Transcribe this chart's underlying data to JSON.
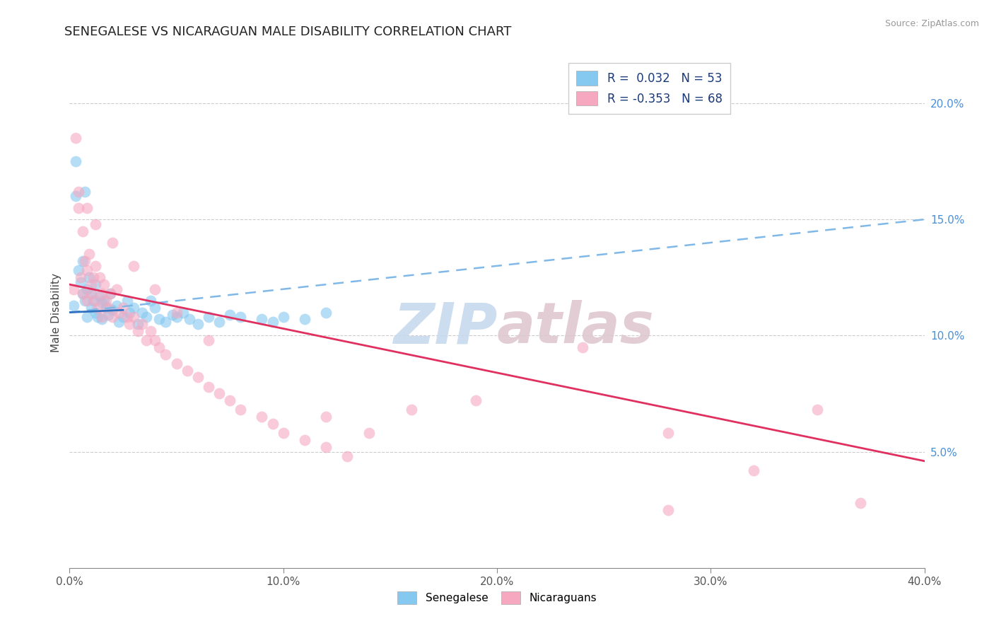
{
  "title": "SENEGALESE VS NICARAGUAN MALE DISABILITY CORRELATION CHART",
  "source": "Source: ZipAtlas.com",
  "xlabel": "",
  "ylabel": "Male Disability",
  "xlim": [
    0.0,
    0.4
  ],
  "ylim": [
    0.0,
    0.22
  ],
  "xticks": [
    0.0,
    0.1,
    0.2,
    0.3,
    0.4
  ],
  "xtick_labels": [
    "0.0%",
    "10.0%",
    "20.0%",
    "30.0%",
    "40.0%"
  ],
  "yticks_right": [
    0.05,
    0.1,
    0.15,
    0.2
  ],
  "ytick_labels_right": [
    "5.0%",
    "10.0%",
    "15.0%",
    "20.0%"
  ],
  "blue_color": "#85c8f0",
  "pink_color": "#f5a8c0",
  "blue_line_color": "#3070c0",
  "blue_dash_color": "#80b8e8",
  "pink_line_color": "#e03060",
  "R_blue": 0.032,
  "N_blue": 53,
  "R_pink": -0.353,
  "N_pink": 68,
  "blue_trend_start_y": 0.11,
  "blue_trend_end_y": 0.15,
  "pink_trend_start_y": 0.122,
  "pink_trend_end_y": 0.046,
  "senegalese_x": [
    0.002,
    0.003,
    0.004,
    0.005,
    0.006,
    0.006,
    0.007,
    0.008,
    0.008,
    0.009,
    0.01,
    0.01,
    0.011,
    0.012,
    0.012,
    0.013,
    0.014,
    0.015,
    0.015,
    0.016,
    0.017,
    0.018,
    0.019,
    0.02,
    0.022,
    0.023,
    0.025,
    0.027,
    0.028,
    0.03,
    0.032,
    0.034,
    0.036,
    0.038,
    0.04,
    0.042,
    0.045,
    0.048,
    0.05,
    0.053,
    0.056,
    0.06,
    0.065,
    0.07,
    0.075,
    0.08,
    0.09,
    0.095,
    0.1,
    0.11,
    0.003,
    0.007,
    0.12
  ],
  "senegalese_y": [
    0.113,
    0.175,
    0.128,
    0.123,
    0.118,
    0.132,
    0.115,
    0.12,
    0.108,
    0.125,
    0.112,
    0.118,
    0.115,
    0.11,
    0.122,
    0.108,
    0.117,
    0.114,
    0.107,
    0.115,
    0.112,
    0.109,
    0.118,
    0.111,
    0.113,
    0.106,
    0.108,
    0.115,
    0.11,
    0.112,
    0.105,
    0.11,
    0.108,
    0.115,
    0.112,
    0.107,
    0.106,
    0.109,
    0.108,
    0.11,
    0.107,
    0.105,
    0.108,
    0.106,
    0.109,
    0.108,
    0.107,
    0.106,
    0.108,
    0.107,
    0.16,
    0.162,
    0.11
  ],
  "nicaraguan_x": [
    0.002,
    0.003,
    0.004,
    0.005,
    0.006,
    0.006,
    0.007,
    0.008,
    0.008,
    0.009,
    0.01,
    0.01,
    0.011,
    0.012,
    0.012,
    0.013,
    0.014,
    0.015,
    0.015,
    0.016,
    0.017,
    0.018,
    0.019,
    0.02,
    0.022,
    0.023,
    0.025,
    0.027,
    0.028,
    0.03,
    0.032,
    0.034,
    0.036,
    0.038,
    0.04,
    0.042,
    0.045,
    0.05,
    0.055,
    0.06,
    0.065,
    0.07,
    0.075,
    0.08,
    0.09,
    0.095,
    0.1,
    0.11,
    0.12,
    0.13,
    0.004,
    0.008,
    0.012,
    0.02,
    0.03,
    0.04,
    0.05,
    0.065,
    0.12,
    0.14,
    0.16,
    0.19,
    0.24,
    0.28,
    0.32,
    0.35,
    0.28,
    0.37
  ],
  "nicaraguan_y": [
    0.12,
    0.185,
    0.155,
    0.125,
    0.118,
    0.145,
    0.132,
    0.128,
    0.115,
    0.135,
    0.122,
    0.118,
    0.125,
    0.115,
    0.13,
    0.112,
    0.125,
    0.118,
    0.108,
    0.122,
    0.115,
    0.112,
    0.118,
    0.108,
    0.12,
    0.11,
    0.112,
    0.108,
    0.105,
    0.108,
    0.102,
    0.105,
    0.098,
    0.102,
    0.098,
    0.095,
    0.092,
    0.088,
    0.085,
    0.082,
    0.078,
    0.075,
    0.072,
    0.068,
    0.065,
    0.062,
    0.058,
    0.055,
    0.052,
    0.048,
    0.162,
    0.155,
    0.148,
    0.14,
    0.13,
    0.12,
    0.11,
    0.098,
    0.065,
    0.058,
    0.068,
    0.072,
    0.095,
    0.058,
    0.042,
    0.068,
    0.025,
    0.028
  ]
}
